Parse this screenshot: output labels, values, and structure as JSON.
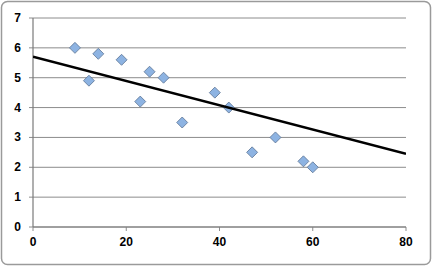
{
  "chart_data": {
    "type": "scatter",
    "xlim": [
      0,
      80
    ],
    "xticks": [
      0,
      20,
      40,
      60,
      80
    ],
    "ylim": [
      0,
      7
    ],
    "yticks": [
      0,
      1,
      2,
      3,
      4,
      5,
      6,
      7
    ],
    "grid": true,
    "series": [
      {
        "type": "scatter",
        "color": "#8db3e2",
        "marker": "diamond",
        "x": [
          9,
          12,
          14,
          19,
          23,
          25,
          28,
          32,
          39,
          42,
          47,
          52,
          58,
          60
        ],
        "values": [
          6.0,
          4.9,
          5.8,
          5.6,
          4.2,
          5.2,
          5.0,
          3.5,
          4.5,
          4.0,
          2.5,
          3.0,
          2.2,
          2.0
        ]
      },
      {
        "type": "line",
        "color": "#000000",
        "line_style": "solid",
        "x": [
          0,
          80
        ],
        "values": [
          5.7,
          2.45
        ]
      }
    ]
  }
}
